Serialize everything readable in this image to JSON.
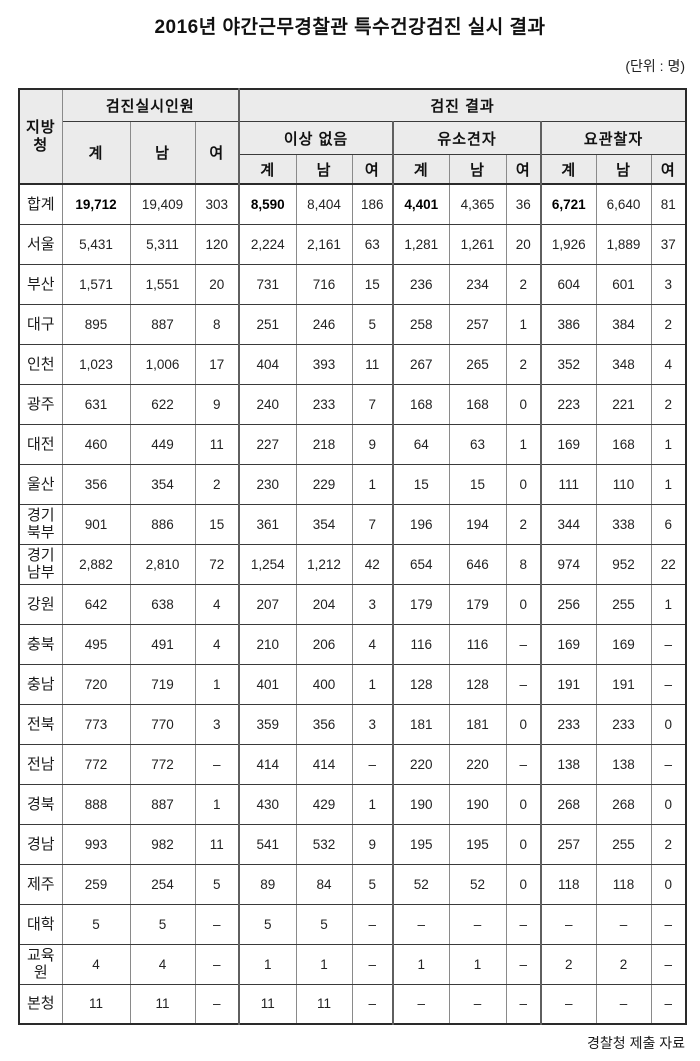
{
  "title": "2016년 야간근무경찰관 특수건강검진 실시 결과",
  "unit_label": "(단위 : 명)",
  "source_label": "경찰청 제출 자료",
  "table": {
    "corner_header": "지방청",
    "group_headers": {
      "examined": "검진실시인원",
      "results": "검진 결과"
    },
    "result_subgroups": [
      "이상 없음",
      "유소견자",
      "요관찰자"
    ],
    "leaf_headers": [
      "계",
      "남",
      "여"
    ],
    "emphasis_value_indices": [
      0,
      3,
      6,
      9
    ],
    "separator_value_indices": [
      3,
      6,
      9
    ],
    "rows": [
      {
        "label": "합계",
        "emphasis": true,
        "values": [
          "19,712",
          "19,409",
          "303",
          "8,590",
          "8,404",
          "186",
          "4,401",
          "4,365",
          "36",
          "6,721",
          "6,640",
          "81"
        ]
      },
      {
        "label": "서울",
        "emphasis": false,
        "values": [
          "5,431",
          "5,311",
          "120",
          "2,224",
          "2,161",
          "63",
          "1,281",
          "1,261",
          "20",
          "1,926",
          "1,889",
          "37"
        ]
      },
      {
        "label": "부산",
        "emphasis": false,
        "values": [
          "1,571",
          "1,551",
          "20",
          "731",
          "716",
          "15",
          "236",
          "234",
          "2",
          "604",
          "601",
          "3"
        ]
      },
      {
        "label": "대구",
        "emphasis": false,
        "values": [
          "895",
          "887",
          "8",
          "251",
          "246",
          "5",
          "258",
          "257",
          "1",
          "386",
          "384",
          "2"
        ]
      },
      {
        "label": "인천",
        "emphasis": false,
        "values": [
          "1,023",
          "1,006",
          "17",
          "404",
          "393",
          "11",
          "267",
          "265",
          "2",
          "352",
          "348",
          "4"
        ]
      },
      {
        "label": "광주",
        "emphasis": false,
        "values": [
          "631",
          "622",
          "9",
          "240",
          "233",
          "7",
          "168",
          "168",
          "0",
          "223",
          "221",
          "2"
        ]
      },
      {
        "label": "대전",
        "emphasis": false,
        "values": [
          "460",
          "449",
          "11",
          "227",
          "218",
          "9",
          "64",
          "63",
          "1",
          "169",
          "168",
          "1"
        ]
      },
      {
        "label": "울산",
        "emphasis": false,
        "values": [
          "356",
          "354",
          "2",
          "230",
          "229",
          "1",
          "15",
          "15",
          "0",
          "111",
          "110",
          "1"
        ]
      },
      {
        "label": "경기북부",
        "emphasis": false,
        "values": [
          "901",
          "886",
          "15",
          "361",
          "354",
          "7",
          "196",
          "194",
          "2",
          "344",
          "338",
          "6"
        ]
      },
      {
        "label": "경기남부",
        "emphasis": false,
        "values": [
          "2,882",
          "2,810",
          "72",
          "1,254",
          "1,212",
          "42",
          "654",
          "646",
          "8",
          "974",
          "952",
          "22"
        ]
      },
      {
        "label": "강원",
        "emphasis": false,
        "values": [
          "642",
          "638",
          "4",
          "207",
          "204",
          "3",
          "179",
          "179",
          "0",
          "256",
          "255",
          "1"
        ]
      },
      {
        "label": "충북",
        "emphasis": false,
        "values": [
          "495",
          "491",
          "4",
          "210",
          "206",
          "4",
          "116",
          "116",
          "–",
          "169",
          "169",
          "–"
        ]
      },
      {
        "label": "충남",
        "emphasis": false,
        "values": [
          "720",
          "719",
          "1",
          "401",
          "400",
          "1",
          "128",
          "128",
          "–",
          "191",
          "191",
          "–"
        ]
      },
      {
        "label": "전북",
        "emphasis": false,
        "values": [
          "773",
          "770",
          "3",
          "359",
          "356",
          "3",
          "181",
          "181",
          "0",
          "233",
          "233",
          "0"
        ]
      },
      {
        "label": "전남",
        "emphasis": false,
        "values": [
          "772",
          "772",
          "–",
          "414",
          "414",
          "–",
          "220",
          "220",
          "–",
          "138",
          "138",
          "–"
        ]
      },
      {
        "label": "경북",
        "emphasis": false,
        "values": [
          "888",
          "887",
          "1",
          "430",
          "429",
          "1",
          "190",
          "190",
          "0",
          "268",
          "268",
          "0"
        ]
      },
      {
        "label": "경남",
        "emphasis": false,
        "values": [
          "993",
          "982",
          "11",
          "541",
          "532",
          "9",
          "195",
          "195",
          "0",
          "257",
          "255",
          "2"
        ]
      },
      {
        "label": "제주",
        "emphasis": false,
        "values": [
          "259",
          "254",
          "5",
          "89",
          "84",
          "5",
          "52",
          "52",
          "0",
          "118",
          "118",
          "0"
        ]
      },
      {
        "label": "대학",
        "emphasis": false,
        "values": [
          "5",
          "5",
          "–",
          "5",
          "5",
          "–",
          "–",
          "–",
          "–",
          "–",
          "–",
          "–"
        ]
      },
      {
        "label": "교육원",
        "emphasis": false,
        "values": [
          "4",
          "4",
          "–",
          "1",
          "1",
          "–",
          "1",
          "1",
          "–",
          "2",
          "2",
          "–"
        ]
      },
      {
        "label": "본청",
        "emphasis": false,
        "values": [
          "11",
          "11",
          "–",
          "11",
          "11",
          "–",
          "–",
          "–",
          "–",
          "–",
          "–",
          "–"
        ]
      }
    ],
    "colors": {
      "header_bg": "#ebebeb",
      "outer_border": "#2a2a2a",
      "inner_horizontal": "#3a3a3a",
      "inner_vertical": "#8a8a8a",
      "group_separator": "#5f5f5f"
    }
  }
}
